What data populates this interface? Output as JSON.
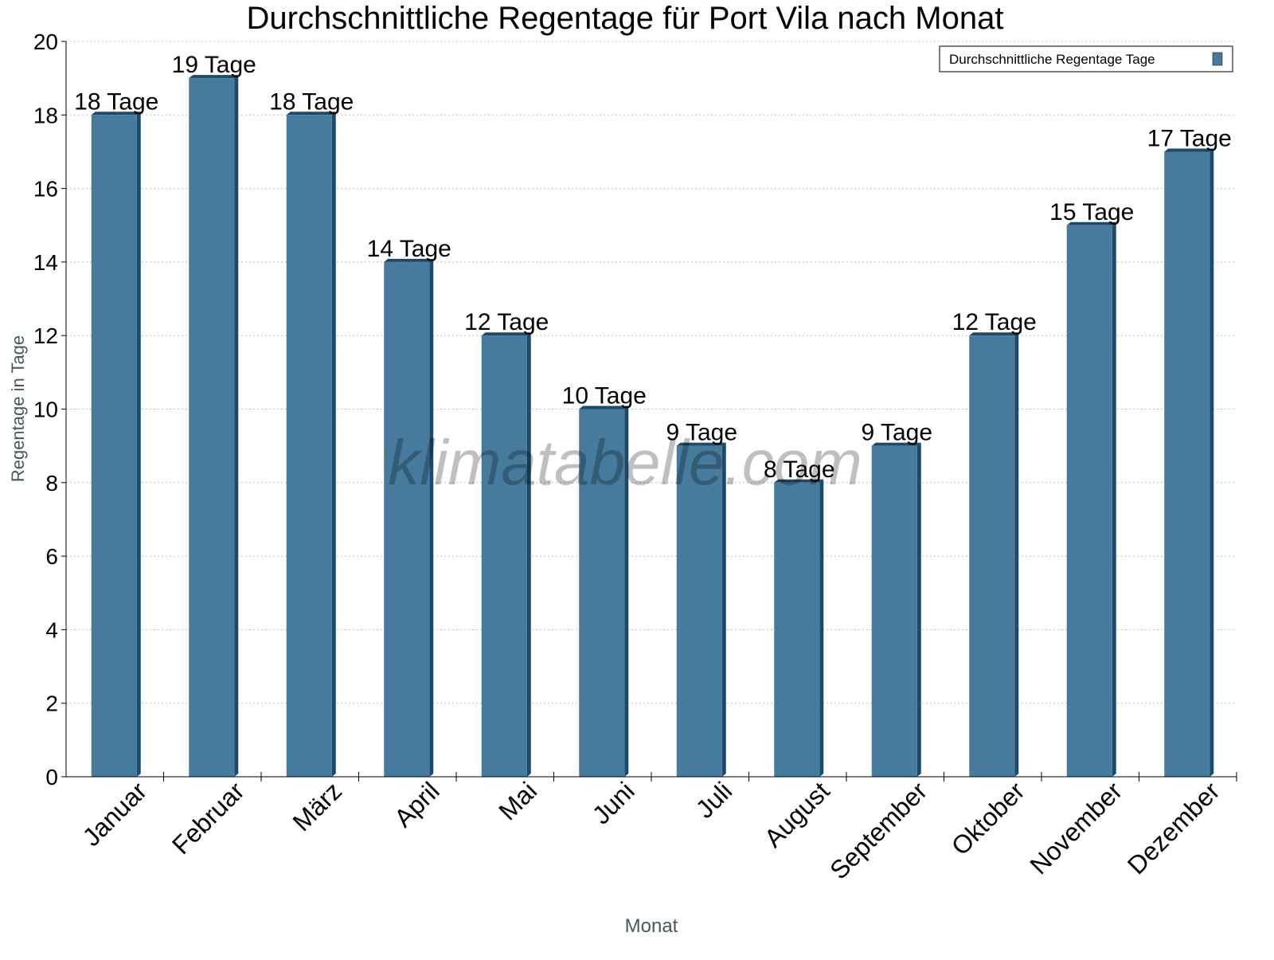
{
  "chart_data": {
    "type": "bar",
    "title": "Durchschnittliche Regentage für Port Vila nach Monat",
    "xlabel": "Monat",
    "ylabel": "Regentage in Tage",
    "ylim": [
      0,
      20
    ],
    "yticks": [
      0,
      2,
      4,
      6,
      8,
      10,
      12,
      14,
      16,
      18,
      20
    ],
    "grid": true,
    "legend_position": "top-right",
    "categories": [
      "Januar",
      "Februar",
      "März",
      "April",
      "Mai",
      "Juni",
      "Juli",
      "August",
      "September",
      "Oktober",
      "November",
      "Dezember"
    ],
    "series": [
      {
        "name": "Durchschnittliche Regentage Tage",
        "color": "#467b9d",
        "side_color": "#1a4b6e",
        "values": [
          18,
          19,
          18,
          14,
          12,
          10,
          9,
          8,
          9,
          12,
          15,
          17
        ]
      }
    ],
    "value_label_suffix": " Tage",
    "watermark": "klimatabelle.com"
  }
}
